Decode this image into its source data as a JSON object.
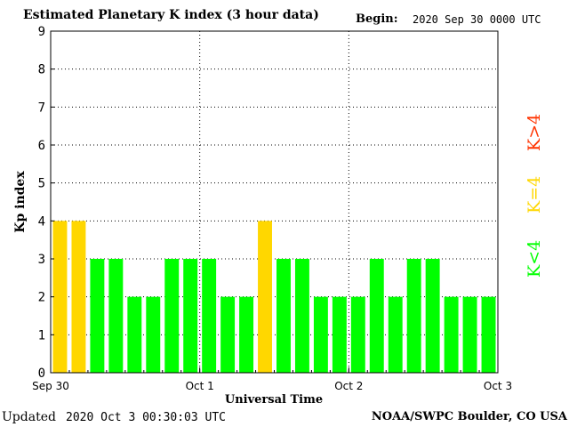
{
  "header": {
    "title": "Estimated Planetary K index (3 hour data)",
    "begin_label": "Begin:",
    "begin_value": "2020 Sep 30 0000 UTC"
  },
  "footer": {
    "updated_label": "Updated",
    "updated_value": "2020 Oct  3 00:30:03 UTC",
    "credit": "NOAA/SWPC Boulder, CO USA"
  },
  "legend": {
    "low": "K<4",
    "mid": "K=4",
    "high": "K>4"
  },
  "colors": {
    "low": "#00ff00",
    "mid": "#ffd700",
    "high": "#ff3300"
  },
  "chart_data": {
    "type": "bar",
    "title": "Estimated Planetary K index (3 hour data)",
    "xlabel": "Universal Time",
    "ylabel": "Kp index",
    "ylim": [
      0,
      9
    ],
    "yticks": [
      "0",
      "1",
      "2",
      "3",
      "4",
      "5",
      "6",
      "7",
      "8",
      "9"
    ],
    "xticks": [
      "Sep 30",
      "Oct 1",
      "Oct 2",
      "Oct 3"
    ],
    "grid": true,
    "values": [
      4,
      4,
      3,
      3,
      2,
      2,
      3,
      3,
      3,
      2,
      2,
      4,
      3,
      3,
      2,
      2,
      2,
      3,
      2,
      3,
      3,
      2,
      2,
      2
    ]
  }
}
